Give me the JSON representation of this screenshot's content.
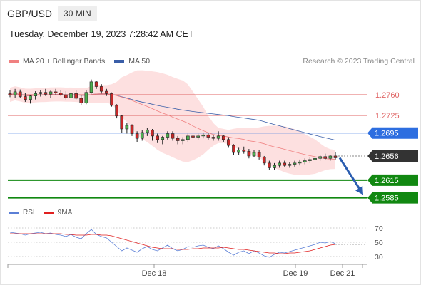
{
  "header": {
    "symbol": "GBP/USD",
    "timeframe": "30 MIN"
  },
  "datetime": "Tuesday, December 19, 2023 7:28:42 AM CET",
  "legend": [
    {
      "label": "MA 20 + Bollinger Bands",
      "color": "#f08080"
    },
    {
      "label": "MA 50",
      "color": "#3a5ea8"
    }
  ],
  "copyright": "Research © 2023 Trading Central",
  "rsi_legend": [
    {
      "label": "RSI",
      "color": "#5b7fd6"
    },
    {
      "label": "9MA",
      "color": "#e02020"
    }
  ],
  "chart_data": {
    "type": "candlestick",
    "price_axis": {
      "min": 1.257,
      "max": 1.28
    },
    "levels": [
      {
        "label": "1.2760",
        "value": 1.276,
        "kind": "resistance",
        "color": "#e06666"
      },
      {
        "label": "1.2725",
        "value": 1.2725,
        "kind": "resistance",
        "color": "#e06666"
      },
      {
        "label": "1.2695",
        "value": 1.2695,
        "kind": "pivot",
        "color": "#2d6ee0"
      },
      {
        "label": "1.2656",
        "value": 1.2656,
        "kind": "last",
        "color": "#333333"
      },
      {
        "label": "1.2615",
        "value": 1.2615,
        "kind": "support",
        "color": "#118811"
      },
      {
        "label": "1.2585",
        "value": 1.2585,
        "kind": "support",
        "color": "#118811"
      }
    ],
    "x_labels": [
      "Dec 18",
      "Dec 19",
      "Dec 21"
    ],
    "forecast": {
      "from": 1.2653,
      "to": 1.259
    },
    "ohlc": [
      [
        1.2762,
        1.2768,
        1.2756,
        1.276
      ],
      [
        1.276,
        1.277,
        1.2755,
        1.2765
      ],
      [
        1.2765,
        1.2769,
        1.2754,
        1.2757
      ],
      [
        1.2757,
        1.2763,
        1.2748,
        1.2752
      ],
      [
        1.2752,
        1.276,
        1.2745,
        1.2758
      ],
      [
        1.2758,
        1.2766,
        1.2752,
        1.2762
      ],
      [
        1.2762,
        1.2768,
        1.2757,
        1.2764
      ],
      [
        1.2764,
        1.277,
        1.2758,
        1.2761
      ],
      [
        1.2761,
        1.2767,
        1.2755,
        1.2765
      ],
      [
        1.2765,
        1.277,
        1.276,
        1.2763
      ],
      [
        1.2763,
        1.2768,
        1.2758,
        1.276
      ],
      [
        1.276,
        1.2766,
        1.2752,
        1.2755
      ],
      [
        1.2755,
        1.2764,
        1.275,
        1.2762
      ],
      [
        1.2762,
        1.2768,
        1.2752,
        1.2754
      ],
      [
        1.2754,
        1.276,
        1.2742,
        1.2746
      ],
      [
        1.2746,
        1.2768,
        1.2744,
        1.2764
      ],
      [
        1.2764,
        1.2786,
        1.2762,
        1.2782
      ],
      [
        1.2782,
        1.2784,
        1.277,
        1.2774
      ],
      [
        1.2774,
        1.2778,
        1.2762,
        1.2766
      ],
      [
        1.2766,
        1.277,
        1.2758,
        1.2762
      ],
      [
        1.2762,
        1.2764,
        1.274,
        1.2742
      ],
      [
        1.2742,
        1.2744,
        1.272,
        1.2724
      ],
      [
        1.2724,
        1.2726,
        1.2695,
        1.2702
      ],
      [
        1.2702,
        1.2712,
        1.2694,
        1.2708
      ],
      [
        1.2708,
        1.271,
        1.269,
        1.2694
      ],
      [
        1.2694,
        1.2698,
        1.268,
        1.2686
      ],
      [
        1.2686,
        1.27,
        1.2682,
        1.2696
      ],
      [
        1.2696,
        1.2704,
        1.269,
        1.27
      ],
      [
        1.27,
        1.2702,
        1.2682,
        1.269
      ],
      [
        1.269,
        1.2694,
        1.2678,
        1.2684
      ],
      [
        1.2684,
        1.269,
        1.2676,
        1.2688
      ],
      [
        1.2688,
        1.2698,
        1.2684,
        1.2694
      ],
      [
        1.2694,
        1.2698,
        1.2682,
        1.2686
      ],
      [
        1.2686,
        1.269,
        1.2676,
        1.2682
      ],
      [
        1.2682,
        1.2688,
        1.2676,
        1.2684
      ],
      [
        1.2684,
        1.2694,
        1.268,
        1.269
      ],
      [
        1.269,
        1.2694,
        1.2684,
        1.2688
      ],
      [
        1.2688,
        1.2694,
        1.2684,
        1.269
      ],
      [
        1.269,
        1.2696,
        1.2686,
        1.2692
      ],
      [
        1.2692,
        1.2696,
        1.2684,
        1.2688
      ],
      [
        1.2688,
        1.2692,
        1.2682,
        1.2686
      ],
      [
        1.2686,
        1.2698,
        1.2682,
        1.269
      ],
      [
        1.269,
        1.2692,
        1.268,
        1.2684
      ],
      [
        1.2684,
        1.2688,
        1.267,
        1.2674
      ],
      [
        1.2674,
        1.2676,
        1.2658,
        1.2662
      ],
      [
        1.2662,
        1.267,
        1.2658,
        1.2666
      ],
      [
        1.2666,
        1.2672,
        1.266,
        1.2664
      ],
      [
        1.2664,
        1.2668,
        1.2652,
        1.2656
      ],
      [
        1.2656,
        1.2666,
        1.2654,
        1.2662
      ],
      [
        1.2662,
        1.2666,
        1.265,
        1.2654
      ],
      [
        1.2654,
        1.2656,
        1.264,
        1.2644
      ],
      [
        1.2644,
        1.2648,
        1.2632,
        1.2636
      ],
      [
        1.2636,
        1.2644,
        1.2632,
        1.264
      ],
      [
        1.264,
        1.2648,
        1.2636,
        1.2644
      ],
      [
        1.2644,
        1.2648,
        1.2638,
        1.264
      ],
      [
        1.264,
        1.2646,
        1.2636,
        1.2642
      ],
      [
        1.2642,
        1.2648,
        1.2638,
        1.2644
      ],
      [
        1.2644,
        1.265,
        1.264,
        1.2646
      ],
      [
        1.2646,
        1.2652,
        1.2642,
        1.2648
      ],
      [
        1.2648,
        1.2654,
        1.2644,
        1.265
      ],
      [
        1.265,
        1.2656,
        1.2646,
        1.2652
      ],
      [
        1.2652,
        1.2658,
        1.2648,
        1.2655
      ],
      [
        1.2655,
        1.266,
        1.265,
        1.2652
      ],
      [
        1.2652,
        1.2658,
        1.2648,
        1.2656
      ],
      [
        1.2656,
        1.2662,
        1.265,
        1.2653
      ]
    ],
    "rsi_axis": {
      "min": 20,
      "max": 80,
      "ticks": [
        70,
        50,
        30
      ]
    },
    "rsi": [
      64,
      63,
      62,
      60,
      62,
      63,
      64,
      62,
      63,
      61,
      60,
      58,
      61,
      57,
      55,
      62,
      68,
      61,
      58,
      56,
      50,
      44,
      38,
      42,
      39,
      36,
      41,
      44,
      40,
      38,
      42,
      46,
      41,
      38,
      40,
      44,
      43,
      45,
      46,
      43,
      41,
      45,
      41,
      36,
      32,
      36,
      38,
      34,
      38,
      35,
      31,
      29,
      33,
      36,
      35,
      37,
      39,
      41,
      43,
      45,
      47,
      50,
      49,
      51,
      48
    ],
    "rsi_ma": [
      62,
      62,
      62,
      62,
      62,
      62,
      62,
      62,
      62,
      62,
      62,
      61,
      61,
      60,
      60,
      60,
      61,
      61,
      60,
      60,
      59,
      57,
      55,
      53,
      51,
      49,
      47,
      45,
      43,
      42,
      41,
      41,
      41,
      40,
      40,
      40,
      41,
      41,
      42,
      42,
      42,
      42,
      43,
      42,
      41,
      40,
      40,
      39,
      38,
      37,
      36,
      35,
      35,
      34,
      34,
      35,
      35,
      36,
      37,
      38,
      40,
      42,
      44,
      46,
      47
    ]
  }
}
